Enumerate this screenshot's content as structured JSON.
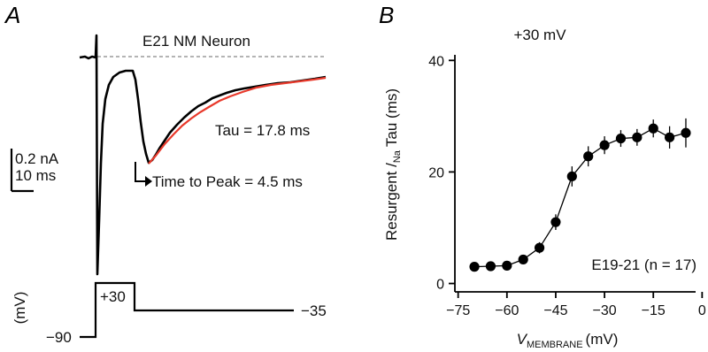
{
  "panel_a": {
    "letter": "A",
    "title": "E21 NM Neuron",
    "tau_text": "Tau = 17.8 ms",
    "time_to_peak_text": "Time to Peak = 4.5 ms",
    "scale_current": "0.2 nA",
    "scale_time": "10 ms",
    "protocol": {
      "hold_label": "−90",
      "step_label": "+30",
      "post_label": "−35",
      "unit_label": "(mV)"
    },
    "colors": {
      "trace": "#000000",
      "fit": "#e8392b",
      "baseline": "#888888"
    }
  },
  "panel_b": {
    "letter": "B",
    "condition": "+30 mV",
    "annotation": "E19-21 (n = 17)"
  },
  "chart_data": {
    "type": "scatter",
    "title": "",
    "xlabel_main": "V",
    "xlabel_sub": "MEMBRANE",
    "xlabel_unit": "(mV)",
    "ylabel_main": "Resurgent /",
    "ylabel_sub": "Na",
    "ylabel_end": "Tau (ms)",
    "xlim": [
      -76,
      -2
    ],
    "ylim": [
      -1.5,
      41
    ],
    "xticks": [
      -75,
      -60,
      -45,
      -30,
      -15,
      0
    ],
    "xtick_labels": [
      "−75",
      "−60",
      "−45",
      "−30",
      "−15",
      "0"
    ],
    "yticks": [
      0,
      20,
      40
    ],
    "ytick_labels": [
      "0",
      "20",
      "40"
    ],
    "series": [
      {
        "x": [
          -70,
          -65,
          -60,
          -55,
          -50,
          -45,
          -40,
          -35,
          -30,
          -25,
          -20,
          -15,
          -10,
          -5
        ],
        "y": [
          3.0,
          3.1,
          3.2,
          4.3,
          6.4,
          11.0,
          19.2,
          22.8,
          24.8,
          26.0,
          26.2,
          27.8,
          26.2,
          27.0
        ],
        "err": [
          0.5,
          0.5,
          0.6,
          0.8,
          1.0,
          1.4,
          1.8,
          1.8,
          1.6,
          1.5,
          1.5,
          1.6,
          2.0,
          2.6
        ]
      }
    ],
    "grid": false,
    "marker_color": "#000000"
  }
}
